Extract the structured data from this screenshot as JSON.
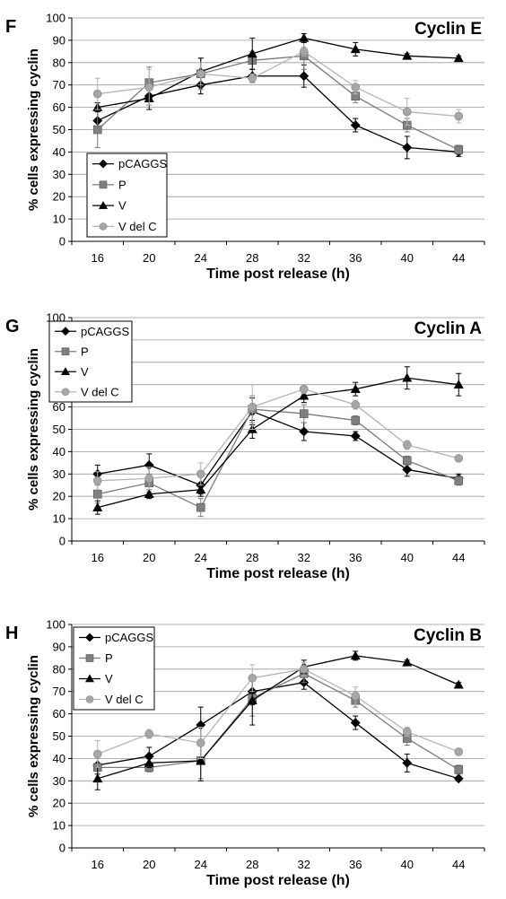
{
  "chart_data": [
    {
      "type": "line",
      "panel": "F",
      "title": "Cyclin E",
      "xlabel": "Time post release (h)",
      "ylabel": "% cells expressing cyclin",
      "x": [
        16,
        20,
        24,
        28,
        32,
        36,
        40,
        44
      ],
      "ylim": [
        0,
        100
      ],
      "yticks": [
        0,
        10,
        20,
        30,
        40,
        50,
        60,
        70,
        80,
        90,
        100
      ],
      "grid": true,
      "legend_position": "bottom-left",
      "series": [
        {
          "name": "pCAGGS",
          "marker": "diamond",
          "color": "#000000",
          "values": [
            54,
            65,
            70,
            74,
            74,
            52,
            42,
            40
          ],
          "errors": [
            4,
            4,
            4,
            3,
            5,
            3,
            5,
            2
          ]
        },
        {
          "name": "P",
          "marker": "square",
          "color": "#808080",
          "values": [
            50,
            71,
            75,
            81,
            83,
            65,
            52,
            41
          ],
          "errors": [
            8,
            7,
            7,
            4,
            6,
            3,
            3,
            2
          ]
        },
        {
          "name": "V",
          "marker": "triangle",
          "color": "#000000",
          "values": [
            60,
            64,
            76,
            84,
            91,
            86,
            83,
            82
          ],
          "errors": [
            2,
            5,
            6,
            7,
            2,
            3,
            1,
            1
          ]
        },
        {
          "name": "V del C",
          "marker": "circle",
          "color": "#a6a6a6",
          "values": [
            66,
            69,
            75,
            73,
            85,
            69,
            58,
            56
          ],
          "errors": [
            7,
            8,
            5,
            2,
            2,
            3,
            6,
            3
          ]
        }
      ]
    },
    {
      "type": "line",
      "panel": "G",
      "title": "Cyclin A",
      "xlabel": "Time post release (h)",
      "ylabel": "% cells expressing cyclin",
      "x": [
        16,
        20,
        24,
        28,
        32,
        36,
        40,
        44
      ],
      "ylim": [
        0,
        100
      ],
      "yticks": [
        0,
        10,
        20,
        30,
        40,
        50,
        60,
        70,
        80,
        90,
        100
      ],
      "grid": true,
      "legend_position": "top-left",
      "series": [
        {
          "name": "pCAGGS",
          "marker": "diamond",
          "color": "#000000",
          "values": [
            30,
            34,
            25,
            58,
            49,
            47,
            32,
            28
          ],
          "errors": [
            4,
            5,
            4,
            6,
            4,
            2,
            3,
            2
          ]
        },
        {
          "name": "P",
          "marker": "square",
          "color": "#808080",
          "values": [
            21,
            26,
            15,
            59,
            57,
            54,
            36,
            27
          ],
          "errors": [
            4,
            4,
            4,
            6,
            4,
            2,
            2,
            2
          ]
        },
        {
          "name": "V",
          "marker": "triangle",
          "color": "#000000",
          "values": [
            15,
            21,
            23,
            50,
            65,
            68,
            73,
            70
          ],
          "errors": [
            3,
            2,
            3,
            4,
            3,
            3,
            5,
            5
          ]
        },
        {
          "name": "V del C",
          "marker": "circle",
          "color": "#a6a6a6",
          "values": [
            27,
            28,
            30,
            60,
            68,
            61,
            43,
            37
          ],
          "errors": [
            4,
            5,
            5,
            10,
            2,
            2,
            2,
            1
          ]
        }
      ]
    },
    {
      "type": "line",
      "panel": "H",
      "title": "Cyclin B",
      "xlabel": "Time post release (h)",
      "ylabel": "% cells expressing cyclin",
      "x": [
        16,
        20,
        24,
        28,
        32,
        36,
        40,
        44
      ],
      "ylim": [
        0,
        100
      ],
      "yticks": [
        0,
        10,
        20,
        30,
        40,
        50,
        60,
        70,
        80,
        90,
        100
      ],
      "grid": true,
      "legend_position": "top-left",
      "series": [
        {
          "name": "pCAGGS",
          "marker": "diamond",
          "color": "#000000",
          "values": [
            37,
            41,
            55,
            70,
            74,
            56,
            38,
            31
          ],
          "errors": [
            4,
            4,
            8,
            6,
            3,
            3,
            4,
            1
          ]
        },
        {
          "name": "P",
          "marker": "square",
          "color": "#808080",
          "values": [
            36,
            36,
            39,
            67,
            78,
            66,
            49,
            35
          ],
          "errors": [
            6,
            2,
            8,
            8,
            4,
            3,
            3,
            2
          ]
        },
        {
          "name": "V",
          "marker": "triangle",
          "color": "#000000",
          "values": [
            31,
            38,
            39,
            66,
            81,
            86,
            83,
            73
          ],
          "errors": [
            5,
            2,
            9,
            11,
            3,
            2,
            1,
            1
          ]
        },
        {
          "name": "V del C",
          "marker": "circle",
          "color": "#a6a6a6",
          "values": [
            42,
            51,
            47,
            76,
            80,
            68,
            52,
            43
          ],
          "errors": [
            6,
            2,
            7,
            6,
            3,
            4,
            2,
            1
          ]
        }
      ]
    }
  ]
}
